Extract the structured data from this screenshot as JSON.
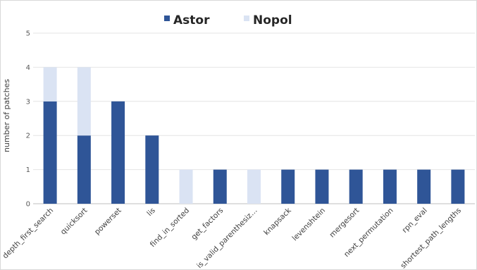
{
  "chart_data": {
    "type": "bar",
    "stacked": true,
    "categories": [
      "depth_first_search",
      "quicksort",
      "powerset",
      "lis",
      "find_in_sorted",
      "get_factors",
      "is_valid_parenthesiz…",
      "knapsack",
      "levenshtein",
      "mergesort",
      "next_permutation",
      "rpn_eval",
      "shortest_path_lengths"
    ],
    "series": [
      {
        "name": "Astor",
        "color": "#2f5597",
        "values": [
          3,
          2,
          3,
          2,
          0,
          1,
          0,
          1,
          1,
          1,
          1,
          1,
          1
        ]
      },
      {
        "name": "Nopol",
        "color": "#dae3f3",
        "values": [
          1,
          2,
          0,
          0,
          1,
          0,
          1,
          0,
          0,
          0,
          0,
          0,
          0
        ]
      }
    ],
    "ylabel": "number  of patches",
    "xlabel": "",
    "ylim": [
      0,
      5
    ],
    "yticks": [
      "0",
      "1",
      "2",
      "3",
      "4",
      "5"
    ],
    "grid": true,
    "legend_position": "top"
  }
}
